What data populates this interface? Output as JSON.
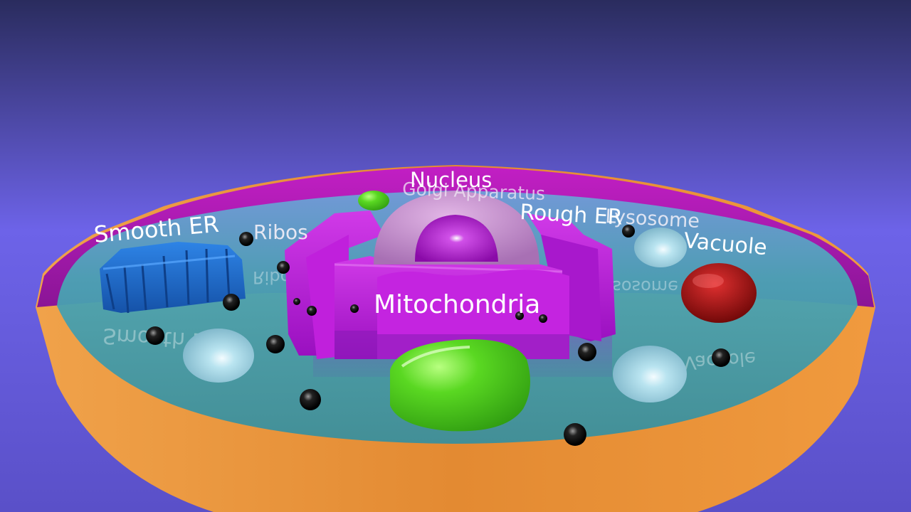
{
  "diagram": {
    "subject": "3D animal cell model",
    "labels": {
      "nucleus": "Nucleus",
      "golgi": "Golgi Apparatus",
      "smooth_er": "Smooth ER",
      "ribosomes": "Ribos",
      "rough_er": "Rough ER",
      "lysosome": "Lysosome",
      "vacuole": "Vacuole",
      "mitochondria": "Mitochondria"
    },
    "reflections": {
      "smooth_er": "Smooth ER",
      "ribosomes": "Ribosomes",
      "lysosome": "Lysosome",
      "vacuole": "Vacuole"
    }
  },
  "colors": {
    "background_top": "#2a2c5e",
    "background_mid": "#6d63e8",
    "cell_wall_outer": "#e3903a",
    "cell_wall_inner": "#b21ab8",
    "cytoplasm": "#3f9fae",
    "smooth_er": "#1f6fd1",
    "rough_er": "#b41fd6",
    "nucleus_envelope": "#c58ad0",
    "nucleolus": "#a010c0",
    "mitochondria": "#4fd21f",
    "lysosome": "#a8d8e8",
    "vacuole": "#b01010",
    "ribosome": "#111111"
  }
}
